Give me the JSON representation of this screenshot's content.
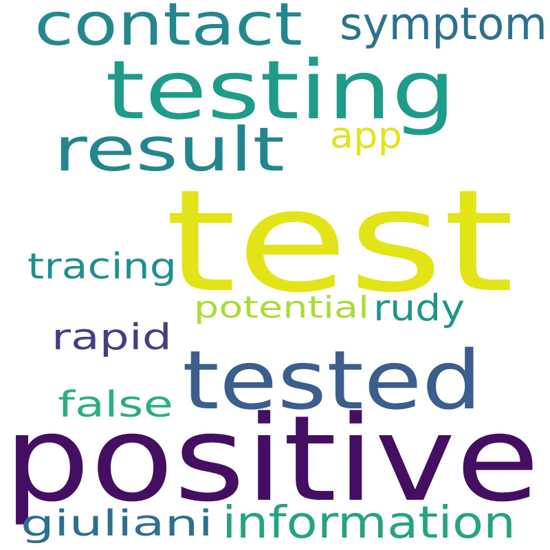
{
  "words": [
    {
      "id": "word-test",
      "text": "test",
      "color": "#e2e418"
    },
    {
      "id": "word-positive",
      "text": "positive",
      "color": "#440f62"
    },
    {
      "id": "word-testing",
      "text": "testing",
      "color": "#1e9c89"
    },
    {
      "id": "word-tested",
      "text": "tested",
      "color": "#3b5e8c"
    },
    {
      "id": "word-contact",
      "text": "contact",
      "color": "#23878e"
    },
    {
      "id": "word-result",
      "text": "result",
      "color": "#23868e"
    },
    {
      "id": "word-symptom",
      "text": "symptom",
      "color": "#2c728e"
    },
    {
      "id": "word-information",
      "text": "information",
      "color": "#25a383"
    },
    {
      "id": "word-app",
      "text": "app",
      "color": "#e3e41a"
    },
    {
      "id": "word-tracing",
      "text": "tracing",
      "color": "#218f8d"
    },
    {
      "id": "word-rapid",
      "text": "rapid",
      "color": "#433e85"
    },
    {
      "id": "word-false",
      "text": "false",
      "color": "#2ab07f"
    },
    {
      "id": "word-giuliani",
      "text": "giuliani",
      "color": "#2d708e"
    },
    {
      "id": "word-potential",
      "text": "potential",
      "color": "#a8dc36"
    },
    {
      "id": "word-rudy",
      "text": "rudy",
      "color": "#1f958b"
    }
  ]
}
